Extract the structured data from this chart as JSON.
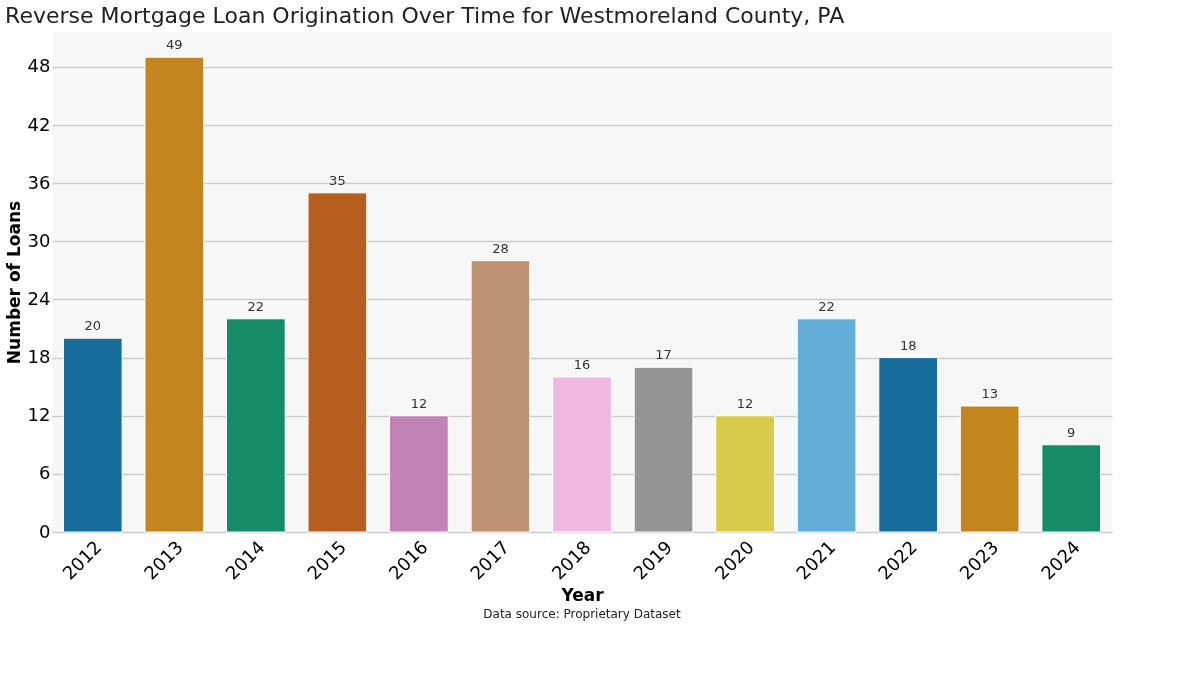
{
  "chart_data": {
    "type": "bar",
    "title": "Reverse Mortgage Loan Origination Over Time for Westmoreland County, PA",
    "xlabel": "Year",
    "ylabel": "Number of Loans",
    "categories": [
      "2012",
      "2013",
      "2014",
      "2015",
      "2016",
      "2017",
      "2018",
      "2019",
      "2020",
      "2021",
      "2022",
      "2023",
      "2024"
    ],
    "values": [
      20,
      49,
      22,
      35,
      12,
      28,
      16,
      17,
      12,
      22,
      18,
      13,
      9
    ],
    "colors": [
      "#176d9c",
      "#c3861f",
      "#168b6a",
      "#b75f1f",
      "#c283b5",
      "#bc9270",
      "#f0b8e0",
      "#949494",
      "#d6cb4a",
      "#63aed8",
      "#176d9c",
      "#c3861f",
      "#168b6a"
    ],
    "ylim": [
      0,
      51.6
    ],
    "yticks": [
      0,
      6,
      12,
      18,
      24,
      30,
      36,
      42,
      48
    ],
    "grid": "y",
    "data_labels": true,
    "annotations": [
      "Data source: Proprietary Dataset"
    ]
  }
}
